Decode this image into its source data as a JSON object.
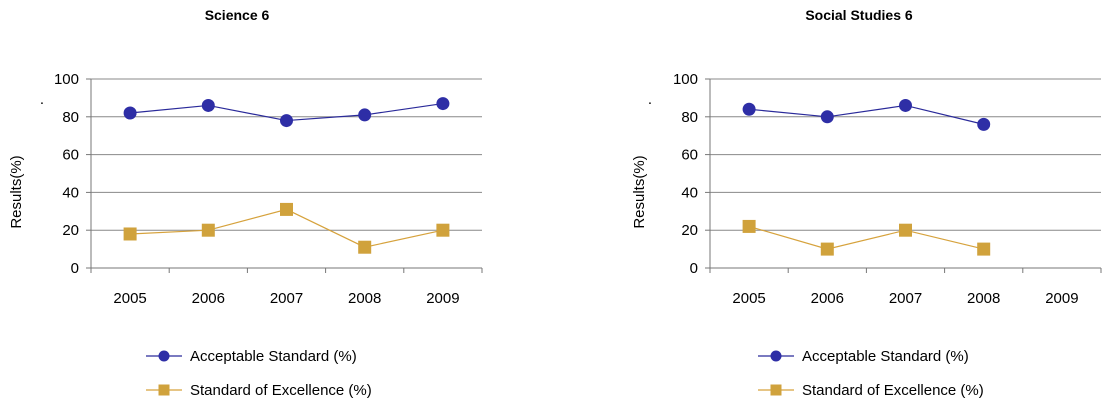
{
  "colors": {
    "acceptable_line": "#2a2a9a",
    "acceptable_marker": "#2e2ea6",
    "excellence_line": "#d6a23c",
    "excellence_marker": "#d0a23c",
    "gridline": "#888888",
    "axis": "#777777"
  },
  "chart_data": [
    {
      "type": "line",
      "title": "Science 6",
      "ylabel": "Results(%)",
      "ylabel_mark": ".",
      "xlabel": "",
      "categories": [
        "2005",
        "2006",
        "2007",
        "2008",
        "2009"
      ],
      "ylim": [
        0,
        100
      ],
      "yticks": [
        "0",
        "20",
        "40",
        "60",
        "80",
        "100"
      ],
      "grid": true,
      "legend_position": "bottom",
      "series": [
        {
          "name": "Acceptable Standard (%)",
          "marker": "circle",
          "values": [
            82,
            86,
            78,
            81,
            87
          ]
        },
        {
          "name": "Standard of Excellence (%)",
          "marker": "square",
          "values": [
            18,
            20,
            31,
            11,
            20
          ]
        }
      ]
    },
    {
      "type": "line",
      "title": "Social Studies 6",
      "ylabel": "Results(%)",
      "ylabel_mark": ".",
      "xlabel": "",
      "categories": [
        "2005",
        "2006",
        "2007",
        "2008",
        "2009"
      ],
      "ylim": [
        0,
        100
      ],
      "yticks": [
        "0",
        "20",
        "40",
        "60",
        "80",
        "100"
      ],
      "grid": true,
      "legend_position": "bottom",
      "series": [
        {
          "name": "Acceptable Standard (%)",
          "marker": "circle",
          "values": [
            84,
            80,
            86,
            76,
            null
          ]
        },
        {
          "name": "Standard of Excellence (%)",
          "marker": "square",
          "values": [
            22,
            10,
            20,
            10,
            null
          ]
        }
      ]
    }
  ]
}
